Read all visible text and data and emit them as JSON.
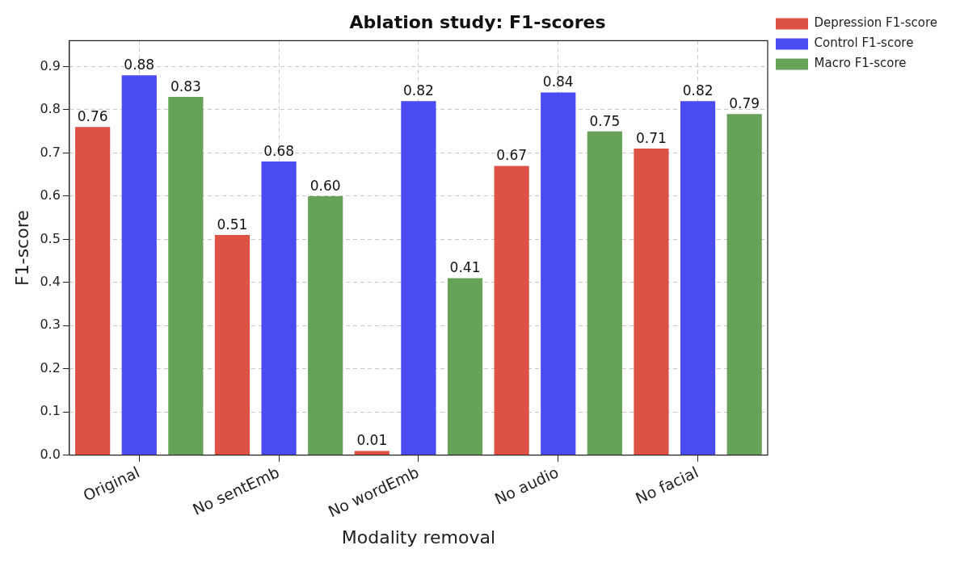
{
  "chart_data": {
    "type": "bar",
    "title": "Ablation study: F1-scores",
    "xlabel": "Modality removal",
    "ylabel": "F1-score",
    "categories": [
      "Original",
      "No sentEmb",
      "No wordEmb",
      "No audio",
      "No facial"
    ],
    "series": [
      {
        "name": "Depression F1-score",
        "color": "#de5246",
        "values": [
          0.76,
          0.51,
          0.01,
          0.67,
          0.71
        ],
        "value_labels": [
          "0.76",
          "0.51",
          "0.01",
          "0.67",
          "0.71"
        ]
      },
      {
        "name": "Control F1-score",
        "color": "#4b4bf2",
        "values": [
          0.88,
          0.68,
          0.82,
          0.84,
          0.82
        ],
        "value_labels": [
          "0.88",
          "0.68",
          "0.82",
          "0.84",
          "0.82"
        ]
      },
      {
        "name": "Macro F1-score",
        "color": "#66a257",
        "values": [
          0.83,
          0.6,
          0.41,
          0.75,
          0.79
        ],
        "value_labels": [
          "0.83",
          "0.60",
          "0.41",
          "0.75",
          "0.79"
        ]
      }
    ],
    "ylim": [
      0,
      0.96
    ],
    "yticks": [
      {
        "value": 0,
        "label": "0.0"
      },
      {
        "value": 0.1,
        "label": "0.1"
      },
      {
        "value": 0.2,
        "label": "0.2"
      },
      {
        "value": 0.3,
        "label": "0.3"
      },
      {
        "value": 0.4,
        "label": "0.4"
      },
      {
        "value": 0.5,
        "label": "0.5"
      },
      {
        "value": 0.6,
        "label": "0.6"
      },
      {
        "value": 0.7,
        "label": "0.7"
      },
      {
        "value": 0.8,
        "label": "0.8"
      },
      {
        "value": 0.9,
        "label": "0.9"
      }
    ],
    "grid": true,
    "legend": "right"
  }
}
